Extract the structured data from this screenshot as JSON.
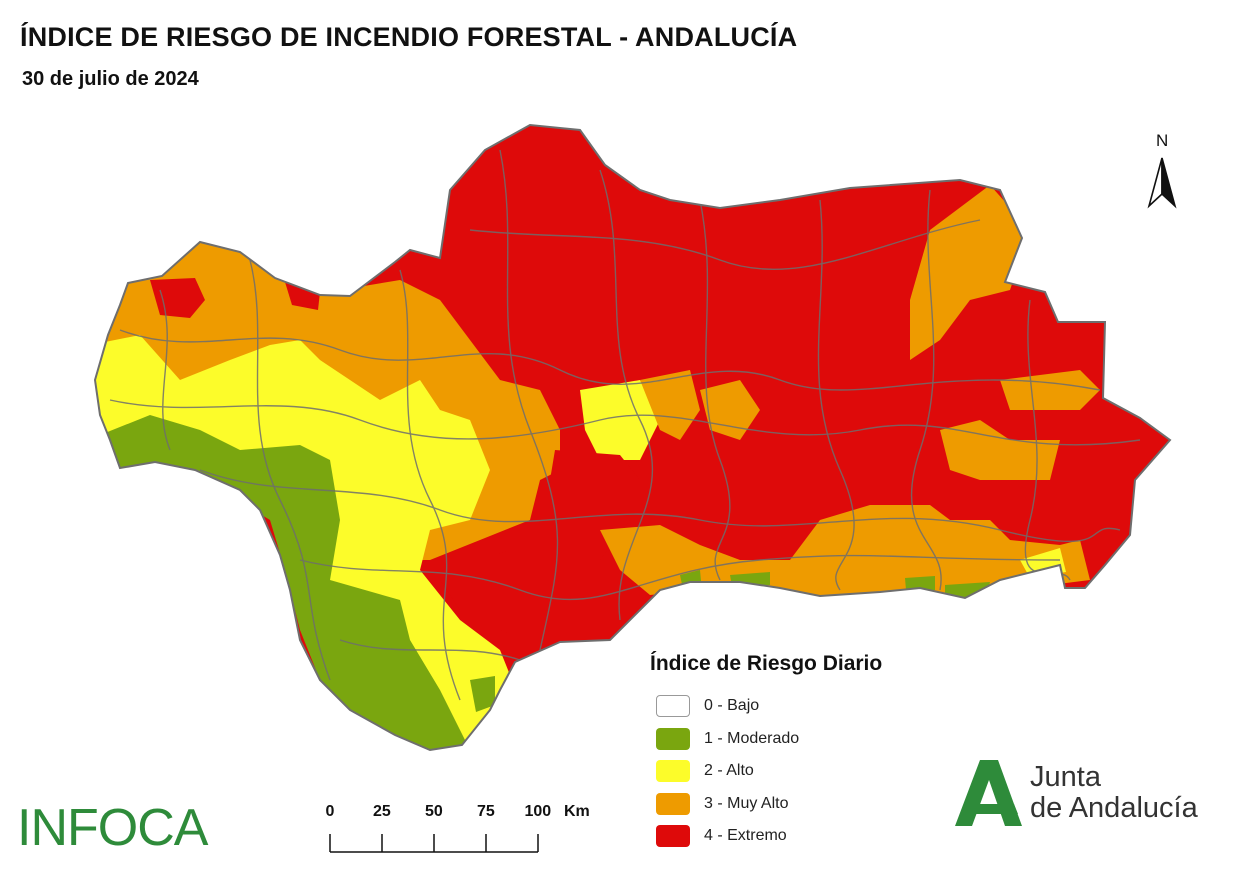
{
  "header": {
    "title": "ÍNDICE DE RIESGO DE INCENDIO FORESTAL - ANDALUCÍA",
    "date": "30 de julio de 2024"
  },
  "map": {
    "region": "Andalucía",
    "palette": {
      "0": "#ffffff",
      "1": "#7aa60f",
      "2": "#fcfc2a",
      "3": "#ee9b00",
      "4": "#de0a0a"
    },
    "border_color": "#6e6e6e",
    "dominant_level_by_area": {
      "northwest": "3 - Muy Alto",
      "west_coast": "2 - Alto",
      "southwest_cadiz": "1 - Moderado",
      "north_central": "4 - Extremo",
      "center": "4 - Extremo",
      "east": "4 - Extremo",
      "southeast_coast": "3 - Muy Alto"
    }
  },
  "legend": {
    "title": "Índice de Riesgo Diario",
    "items": [
      {
        "label": "0 - Bajo",
        "color": "#ffffff"
      },
      {
        "label": "1 - Moderado",
        "color": "#7aa60f"
      },
      {
        "label": "2 - Alto",
        "color": "#fcfc2a"
      },
      {
        "label": "3 - Muy Alto",
        "color": "#ee9b00"
      },
      {
        "label": "4 - Extremo",
        "color": "#de0a0a"
      }
    ]
  },
  "north_arrow": {
    "label": "N"
  },
  "scale_bar": {
    "ticks": [
      "0",
      "25",
      "50",
      "75",
      "100"
    ],
    "unit": "Km"
  },
  "logos": {
    "infoca": "INFOCA",
    "junta_line1": "Junta",
    "junta_line2": "de Andalucía",
    "infoca_color": "#2e8b3a",
    "junta_color": "#2e8b3a"
  }
}
